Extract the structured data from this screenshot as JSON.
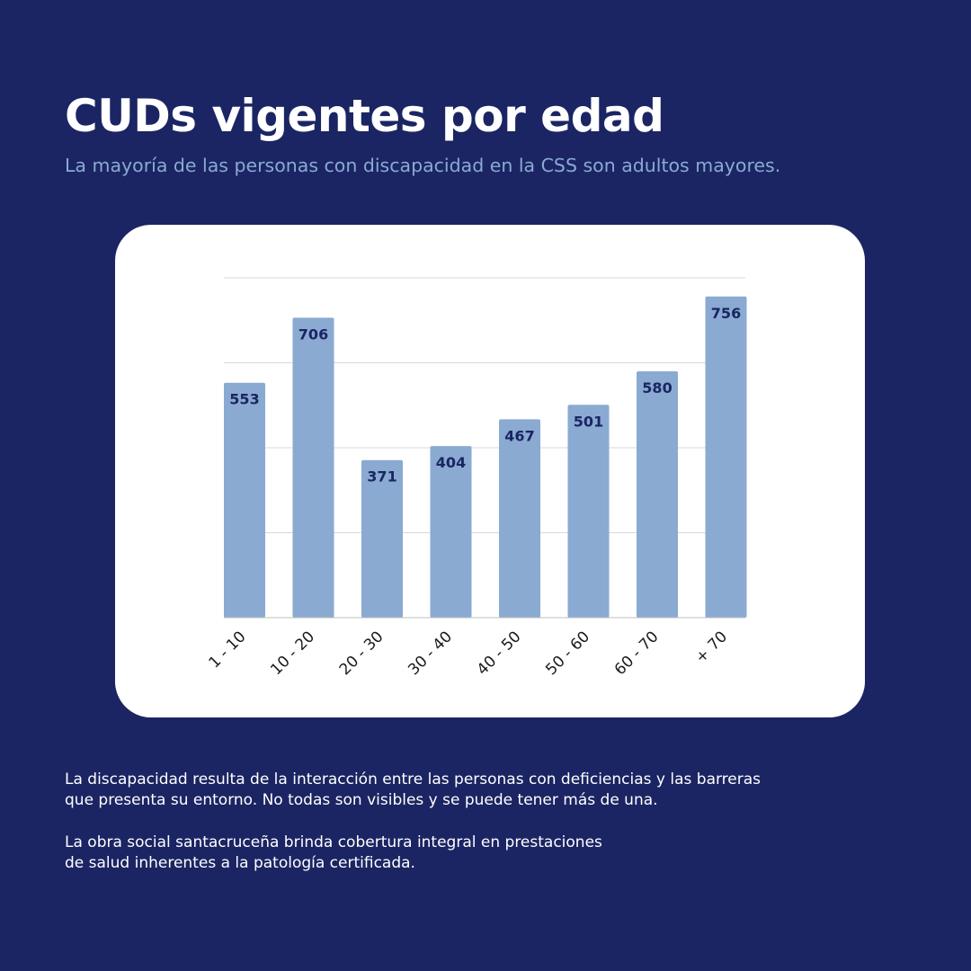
{
  "title": "CUDs vigentes por edad",
  "subtitle": "La mayoría de las personas con discapacidad en la CSS son adultos mayores.",
  "paragraphs": [
    [
      "La discapacidad resulta de la interacción entre las personas con deficiencias y las barreras",
      "que presenta su entorno. No todas son visibles y se puede tener más de una."
    ],
    [
      "La obra social santacruceña brinda cobertura integral en prestaciones",
      "de salud inherentes a la patología certificada."
    ]
  ],
  "colors": {
    "background": "#1b2563",
    "bar": "#8aaad2",
    "label": "#1b2563",
    "accent": "#8aaad2"
  },
  "chart_data": {
    "type": "bar",
    "title": "CUDs vigentes por edad",
    "categories": [
      "1 - 10",
      "10 - 20",
      "20 - 30",
      "30 - 40",
      "40 - 50",
      "50 - 60",
      "60 - 70",
      "+ 70"
    ],
    "values": [
      553,
      706,
      371,
      404,
      467,
      501,
      580,
      756
    ],
    "xlabel": "",
    "ylabel": "",
    "ylim": [
      0,
      800
    ],
    "gridlines": [
      0,
      200,
      400,
      600,
      800
    ],
    "grid": true,
    "legend": "none"
  }
}
